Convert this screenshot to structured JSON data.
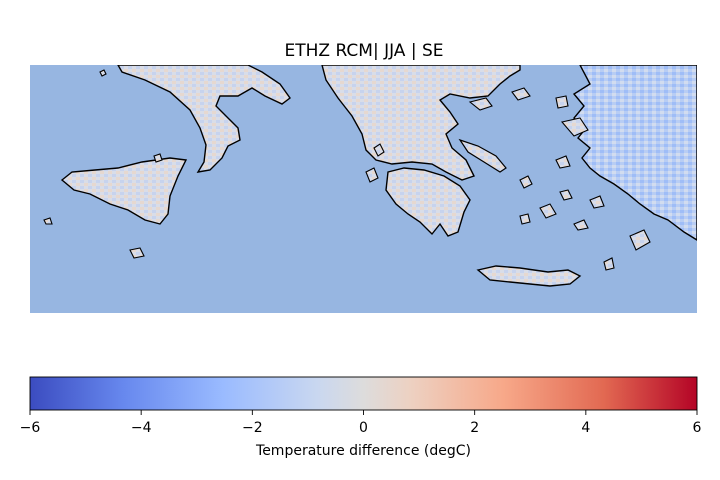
{
  "title": "ETHZ RCM| JJA | SE",
  "map": {
    "sea_color": "#97b6e1",
    "coastline_color": "#000000",
    "land_regions": [
      "Southern Italy",
      "Sicily",
      "Greece",
      "Peloponnese",
      "Crete",
      "Western Turkey",
      "Aegean islands"
    ]
  },
  "colorbar": {
    "label": "Temperature difference (degC)",
    "vmin": -6,
    "vmax": 6,
    "ticks": [
      "−6",
      "−4",
      "−2",
      "0",
      "2",
      "4",
      "6"
    ],
    "tick_values": [
      -6,
      -4,
      -2,
      0,
      2,
      4,
      6
    ],
    "colormap": "coolwarm",
    "colors": [
      "#3b4cc0",
      "#6788ee",
      "#9abbff",
      "#c9d7f0",
      "#edd1c2",
      "#f7a889",
      "#e26952",
      "#b40426"
    ]
  }
}
